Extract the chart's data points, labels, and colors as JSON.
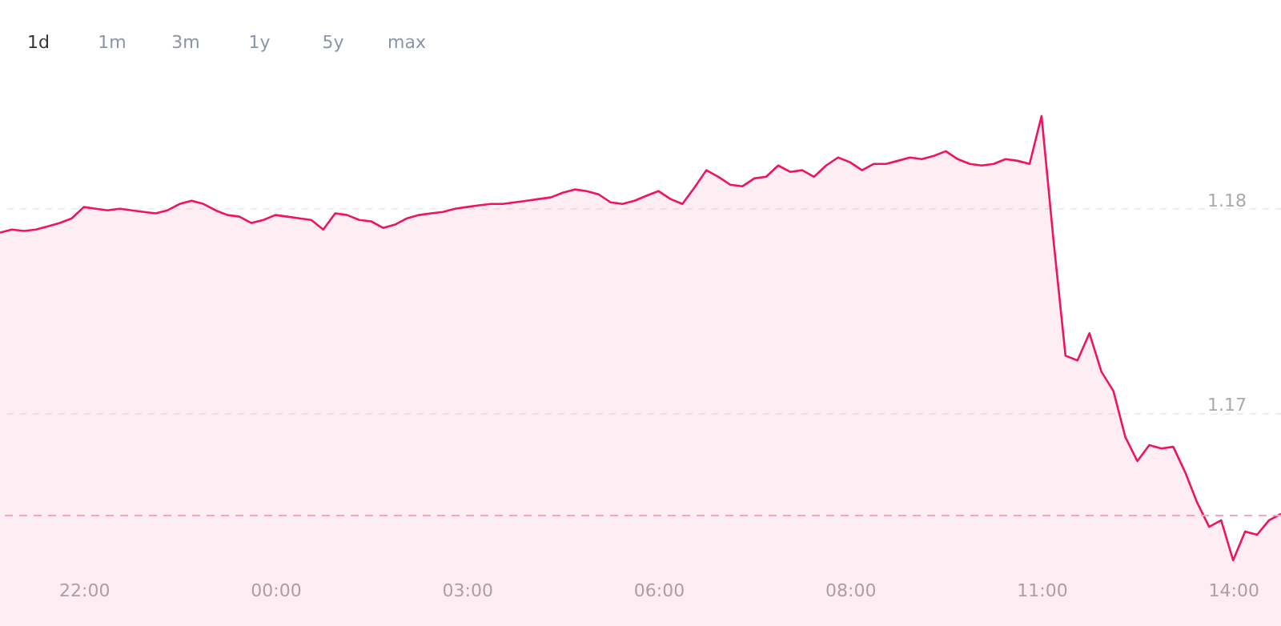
{
  "chart_data": {
    "type": "area",
    "annotations": [
      "1d",
      "1m",
      "3m",
      "1y",
      "5y",
      "max"
    ],
    "categories": [
      null,
      null,
      null,
      null,
      null,
      null,
      null,
      "22:00",
      null,
      null,
      null,
      null,
      null,
      null,
      null,
      null,
      null,
      null,
      null,
      null,
      null,
      null,
      null,
      "00:00",
      null,
      null,
      null,
      null,
      null,
      null,
      null,
      null,
      null,
      null,
      null,
      null,
      null,
      null,
      null,
      "03:00",
      null,
      null,
      null,
      null,
      null,
      null,
      null,
      null,
      null,
      null,
      null,
      null,
      null,
      null,
      null,
      "06:00",
      null,
      null,
      null,
      null,
      null,
      null,
      null,
      null,
      null,
      null,
      null,
      null,
      null,
      null,
      null,
      "08:00",
      null,
      null,
      null,
      null,
      null,
      null,
      null,
      null,
      null,
      null,
      null,
      null,
      null,
      null,
      null,
      "11:00",
      null,
      null,
      null,
      null,
      null,
      null,
      null,
      null,
      null,
      null,
      null,
      null,
      null,
      null,
      null,
      "14:00",
      null,
      null,
      null,
      null
    ],
    "series": [
      {
        "color": "#f0145a",
        "values": [
          1.17883,
          1.17898,
          1.17891,
          1.17898,
          1.17914,
          1.1793,
          1.17953,
          1.18008,
          1.18,
          1.17992,
          1.18,
          1.17992,
          1.17984,
          1.17977,
          1.17992,
          1.18023,
          1.18039,
          1.18023,
          1.17992,
          1.17969,
          1.17961,
          1.1793,
          1.17945,
          1.17969,
          1.17961,
          1.17953,
          1.17945,
          1.17898,
          1.17977,
          1.17969,
          1.17945,
          1.17938,
          1.17906,
          1.17922,
          1.17953,
          1.17969,
          1.17977,
          1.17984,
          1.18,
          1.18008,
          1.18016,
          1.18023,
          1.18023,
          1.18031,
          1.18039,
          1.18047,
          1.18055,
          1.18078,
          1.18094,
          1.18086,
          1.1807,
          1.18031,
          1.18023,
          1.18039,
          1.18063,
          1.18086,
          1.18047,
          1.18023,
          1.18102,
          1.18188,
          1.18156,
          1.18117,
          1.18109,
          1.18148,
          1.18156,
          1.18211,
          1.1818,
          1.18188,
          1.18156,
          1.18211,
          1.1825,
          1.18227,
          1.18188,
          1.18219,
          1.18219,
          1.18234,
          1.1825,
          1.18242,
          1.18258,
          1.18281,
          1.18242,
          1.18219,
          1.18211,
          1.18219,
          1.18242,
          1.18234,
          1.18219,
          1.18453,
          1.17844,
          1.17281,
          1.17258,
          1.17391,
          1.17203,
          1.17109,
          1.16883,
          1.16766,
          1.16844,
          1.16828,
          1.16836,
          1.16711,
          1.16563,
          1.16445,
          1.16477,
          1.16281,
          1.16422,
          1.16406,
          1.16477,
          1.16508
        ]
      }
    ],
    "ylim": [
      1.1596,
      1.1902
    ],
    "yticks": [
      1.17,
      1.18
    ],
    "grid": "y",
    "ref_lines": [
      {
        "axis": "y",
        "value": 1.165,
        "color": "#f8a5bd",
        "line_style": "dashed"
      }
    ]
  }
}
